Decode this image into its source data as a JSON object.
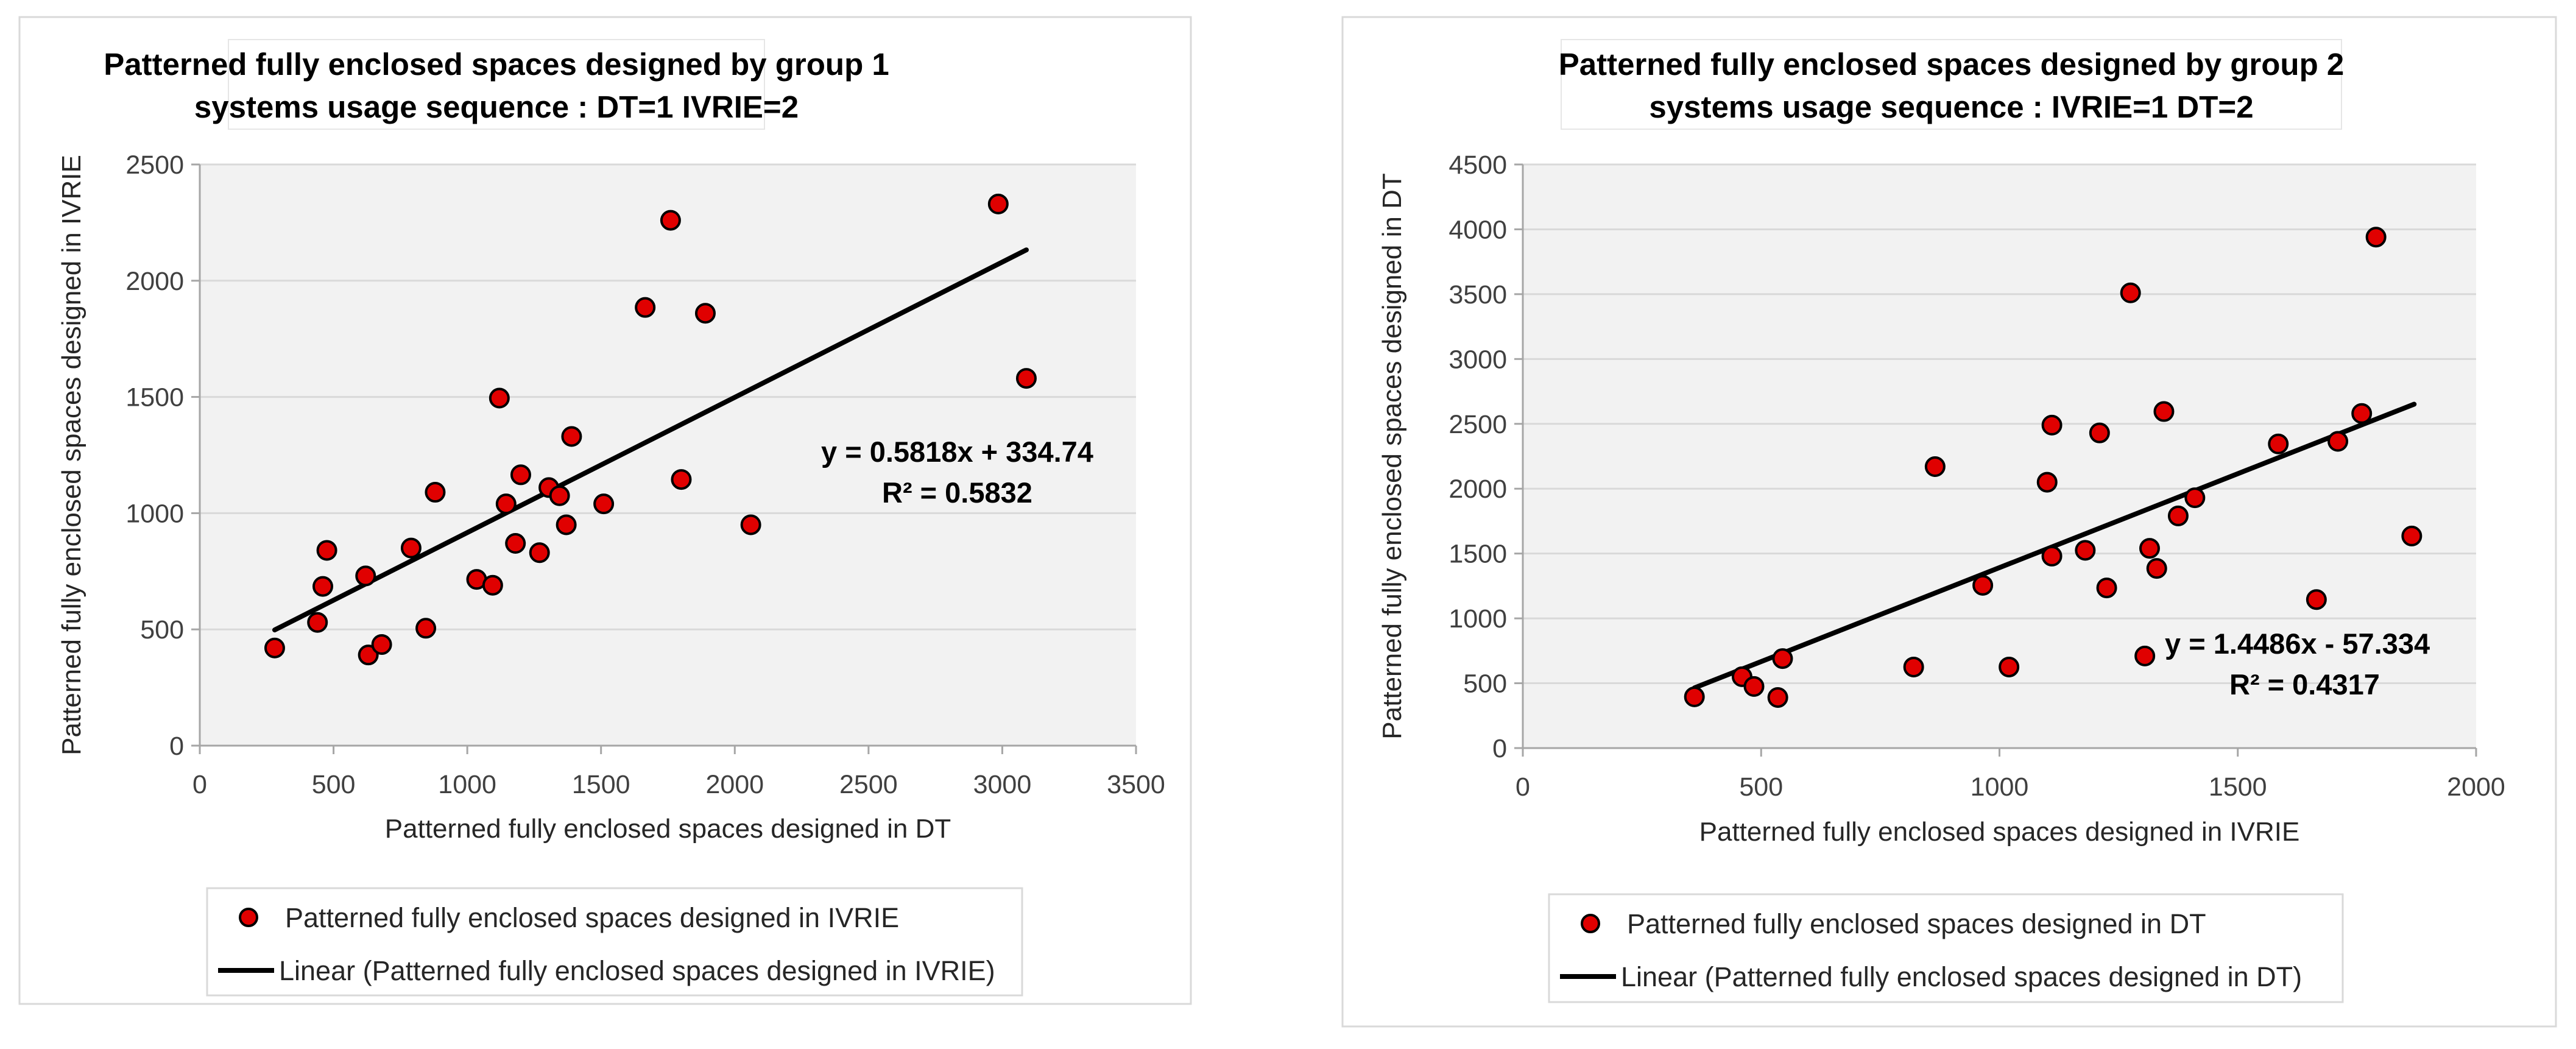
{
  "chart_data": [
    {
      "type": "scatter",
      "title_line1": "Patterned fully enclosed spaces designed by group 1",
      "title_line2": "systems usage sequence : DT=1  IVRIE=2",
      "xlabel": "Patterned fully enclosed spaces designed in DT",
      "ylabel": "Patterned fully enclosed spaces designed in IVRIE",
      "xlim": [
        0,
        3500
      ],
      "ylim": [
        0,
        2500
      ],
      "x_ticks": [
        0,
        500,
        1000,
        1500,
        2000,
        2500,
        3000,
        3500
      ],
      "y_ticks": [
        0,
        500,
        1000,
        1500,
        2000,
        2500
      ],
      "x_tick_labels": [
        "0",
        "500",
        "1000",
        "1500",
        "2000",
        "2500",
        "3000",
        "3500"
      ],
      "y_tick_labels": [
        "0",
        "500",
        "1000",
        "1500",
        "2000",
        "2500"
      ],
      "grid": true,
      "series_name": "Patterned fully enclosed spaces designed in IVRIE",
      "trend_name": "Linear (Patterned fully enclosed spaces designed in IVRIE)",
      "trend_slope": 0.5818,
      "trend_intercept": 334.74,
      "trend_x_range": [
        280,
        3090
      ],
      "equation_text": "y = 0.5818x + 334.74",
      "r2_text": "R² = 0.5832",
      "legend_position": "bottom",
      "points": [
        [
          280,
          420
        ],
        [
          440,
          530
        ],
        [
          460,
          685
        ],
        [
          475,
          840
        ],
        [
          620,
          730
        ],
        [
          630,
          390
        ],
        [
          680,
          435
        ],
        [
          790,
          850
        ],
        [
          845,
          505
        ],
        [
          880,
          1090
        ],
        [
          1035,
          715
        ],
        [
          1095,
          690
        ],
        [
          1120,
          1495
        ],
        [
          1145,
          1040
        ],
        [
          1180,
          870
        ],
        [
          1200,
          1165
        ],
        [
          1270,
          830
        ],
        [
          1305,
          1110
        ],
        [
          1345,
          1075
        ],
        [
          1370,
          950
        ],
        [
          1390,
          1330
        ],
        [
          1510,
          1040
        ],
        [
          1665,
          1885
        ],
        [
          1760,
          2260
        ],
        [
          1800,
          1145
        ],
        [
          1890,
          1860
        ],
        [
          2060,
          950
        ],
        [
          2985,
          2330
        ],
        [
          3090,
          1580
        ]
      ]
    },
    {
      "type": "scatter",
      "title_line1": "Patterned fully enclosed spaces designed by group 2",
      "title_line2": "systems usage sequence : IVRIE=1 DT=2",
      "xlabel": "Patterned fully enclosed spaces designed in IVRIE",
      "ylabel": "Patterned fully enclosed spaces designed in DT",
      "xlim": [
        0,
        2000
      ],
      "ylim": [
        0,
        4500
      ],
      "x_ticks": [
        0,
        500,
        1000,
        1500,
        2000
      ],
      "y_ticks": [
        0,
        500,
        1000,
        1500,
        2000,
        2500,
        3000,
        3500,
        4000,
        4500
      ],
      "x_tick_labels": [
        "0",
        "500",
        "1000",
        "1500",
        "2000"
      ],
      "y_tick_labels": [
        "0",
        "500",
        "1000",
        "1500",
        "2000",
        "2500",
        "3000",
        "3500",
        "4000",
        "4500"
      ],
      "grid": true,
      "series_name": "Patterned fully enclosed spaces designed in DT",
      "trend_name": "Linear (Patterned fully enclosed spaces designed in DT)",
      "trend_slope": 1.4486,
      "trend_intercept": -57.334,
      "trend_x_range": [
        360,
        1870
      ],
      "equation_text": "y = 1.4486x - 57.334",
      "r2_text": "R² = 0.4317",
      "legend_position": "bottom",
      "points": [
        [
          360,
          395
        ],
        [
          460,
          550
        ],
        [
          485,
          475
        ],
        [
          535,
          390
        ],
        [
          545,
          690
        ],
        [
          820,
          625
        ],
        [
          865,
          2170
        ],
        [
          965,
          1255
        ],
        [
          1020,
          625
        ],
        [
          1100,
          2050
        ],
        [
          1110,
          1480
        ],
        [
          1110,
          2490
        ],
        [
          1180,
          1525
        ],
        [
          1210,
          2430
        ],
        [
          1225,
          1235
        ],
        [
          1275,
          3510
        ],
        [
          1305,
          710
        ],
        [
          1315,
          1540
        ],
        [
          1330,
          1385
        ],
        [
          1345,
          2595
        ],
        [
          1375,
          1790
        ],
        [
          1410,
          1930
        ],
        [
          1585,
          2345
        ],
        [
          1665,
          1145
        ],
        [
          1710,
          2365
        ],
        [
          1760,
          2580
        ],
        [
          1790,
          3940
        ],
        [
          1865,
          1635
        ]
      ]
    }
  ]
}
